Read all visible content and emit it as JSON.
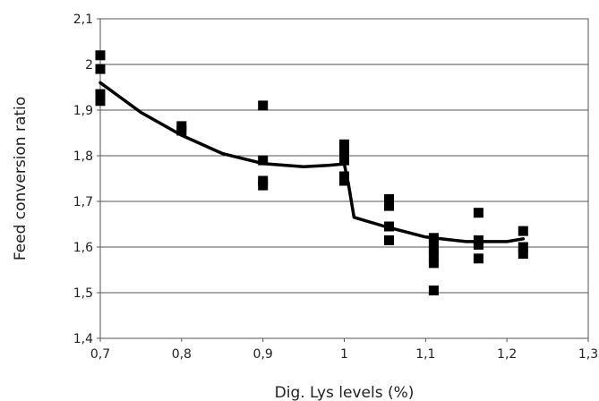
{
  "chart_data": {
    "type": "scatter",
    "xlabel": "Dig. Lys levels (%)",
    "ylabel": "Feed conversion ratio",
    "xlim": [
      0.7,
      1.3
    ],
    "ylim": [
      1.4,
      2.1
    ],
    "x_ticks": [
      "0,7",
      "0,8",
      "0,9",
      "1",
      "1,1",
      "1,2",
      "1,3"
    ],
    "y_ticks": [
      "1,4",
      "1,5",
      "1,6",
      "1,7",
      "1,8",
      "1,9",
      "2",
      "2,1"
    ],
    "grid": "horizontal",
    "series": [
      {
        "marker": "square",
        "points": [
          [
            0.7,
            2.02
          ],
          [
            0.7,
            1.99
          ],
          [
            0.7,
            1.935
          ],
          [
            0.7,
            1.92
          ],
          [
            0.8,
            1.865
          ],
          [
            0.8,
            1.855
          ],
          [
            0.9,
            1.91
          ],
          [
            0.9,
            1.79
          ],
          [
            0.9,
            1.745
          ],
          [
            0.9,
            1.735
          ],
          [
            1.0,
            1.825
          ],
          [
            1.0,
            1.81
          ],
          [
            1.0,
            1.79
          ],
          [
            1.0,
            1.755
          ],
          [
            1.0,
            1.745
          ],
          [
            1.055,
            1.705
          ],
          [
            1.055,
            1.69
          ],
          [
            1.055,
            1.645
          ],
          [
            1.055,
            1.615
          ],
          [
            1.11,
            1.62
          ],
          [
            1.11,
            1.61
          ],
          [
            1.11,
            1.595
          ],
          [
            1.11,
            1.58
          ],
          [
            1.11,
            1.565
          ],
          [
            1.11,
            1.505
          ],
          [
            1.165,
            1.675
          ],
          [
            1.165,
            1.615
          ],
          [
            1.165,
            1.605
          ],
          [
            1.165,
            1.575
          ],
          [
            1.22,
            1.635
          ],
          [
            1.22,
            1.6
          ],
          [
            1.22,
            1.585
          ]
        ]
      },
      {
        "type": "line",
        "points": [
          [
            0.7,
            1.96
          ],
          [
            0.75,
            1.895
          ],
          [
            0.8,
            1.845
          ],
          [
            0.85,
            1.805
          ],
          [
            0.9,
            1.783
          ],
          [
            0.95,
            1.776
          ],
          [
            0.98,
            1.779
          ],
          [
            1.0,
            1.782
          ],
          [
            1.005,
            1.74
          ],
          [
            1.012,
            1.665
          ],
          [
            1.05,
            1.645
          ],
          [
            1.1,
            1.622
          ],
          [
            1.15,
            1.612
          ],
          [
            1.2,
            1.612
          ],
          [
            1.22,
            1.618
          ]
        ]
      }
    ]
  }
}
